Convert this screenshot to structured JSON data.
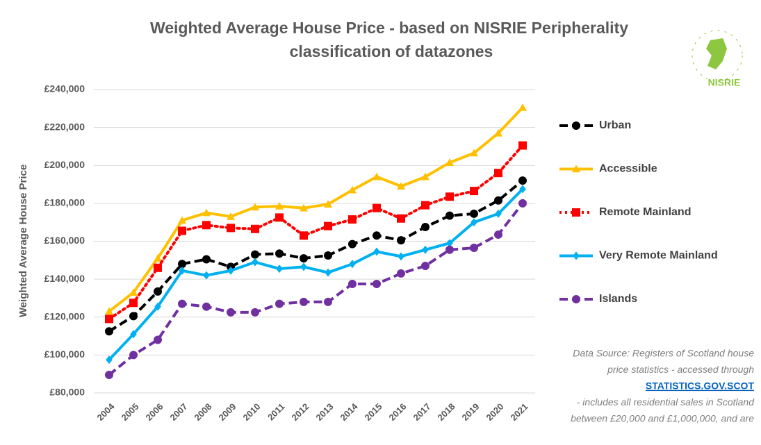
{
  "chart_data": {
    "type": "line",
    "title": [
      "Weighted Average House Price - based on NISRIE Peripherality",
      "classification of datazones"
    ],
    "y_label": "Weighted Average House Price",
    "categories": [
      "2004",
      "2005",
      "2006",
      "2007",
      "2008",
      "2009",
      "2010",
      "2011",
      "2012",
      "2013",
      "2014",
      "2015",
      "2016",
      "2017",
      "2018",
      "2019",
      "2020",
      "2021"
    ],
    "series": [
      {
        "name": "Urban",
        "color": "#000000",
        "marker": "circle",
        "dash": "dashed",
        "values": [
          112500,
          120500,
          133500,
          148000,
          150500,
          146500,
          153000,
          153500,
          151000,
          152500,
          158500,
          163000,
          160500,
          167500,
          173500,
          174500,
          181500,
          192000
        ]
      },
      {
        "name": "Accessible",
        "color": "#ffc000",
        "marker": "triangle",
        "dash": "solid",
        "values": [
          123000,
          133000,
          151000,
          171000,
          175000,
          173000,
          178000,
          178500,
          177500,
          179500,
          187000,
          194000,
          189000,
          194000,
          201500,
          206500,
          217000,
          230500
        ]
      },
      {
        "name": "Remote Mainland",
        "color": "#ff0000",
        "marker": "square",
        "dash": "dotted",
        "values": [
          119000,
          127500,
          146000,
          165500,
          168500,
          167000,
          166500,
          172500,
          163000,
          168000,
          171500,
          177500,
          172000,
          179000,
          183500,
          186500,
          196000,
          210500
        ]
      },
      {
        "name": "Very Remote Mainland",
        "color": "#00b0f0",
        "marker": "diamond",
        "dash": "solid",
        "values": [
          97500,
          111000,
          125500,
          144500,
          142000,
          144500,
          149000,
          145500,
          146500,
          143500,
          148000,
          154500,
          152000,
          155500,
          159000,
          170000,
          174500,
          187500
        ]
      },
      {
        "name": "Islands",
        "color": "#7030a0",
        "marker": "circle",
        "dash": "dashed",
        "values": [
          89500,
          100000,
          108000,
          127000,
          125500,
          122500,
          122500,
          127000,
          128000,
          128000,
          137500,
          137500,
          143000,
          147000,
          155500,
          156500,
          163500,
          180000
        ]
      }
    ],
    "ylim": [
      80000,
      240000
    ],
    "yticks": [
      {
        "value": 80000,
        "label": "£80,000"
      },
      {
        "value": 100000,
        "label": "£100,000"
      },
      {
        "value": 120000,
        "label": "£120,000"
      },
      {
        "value": 140000,
        "label": "£140,000"
      },
      {
        "value": 160000,
        "label": "£160,000"
      },
      {
        "value": 180000,
        "label": "£180,000"
      },
      {
        "value": 200000,
        "label": "£200,000"
      },
      {
        "value": 220000,
        "label": "£220,000"
      },
      {
        "value": 240000,
        "label": "£240,000"
      }
    ],
    "grid": true,
    "legend": "right",
    "logo_text": "NISRIE",
    "source_lines": [
      "Data Source: Registers of Scotland house",
      "price statistics - accessed through",
      "STATISTICS.GOV.SCOT",
      "- includes all residential sales in Scotland",
      "between £20,000 and £1,000,000, and are"
    ],
    "source_link_index": 2
  }
}
